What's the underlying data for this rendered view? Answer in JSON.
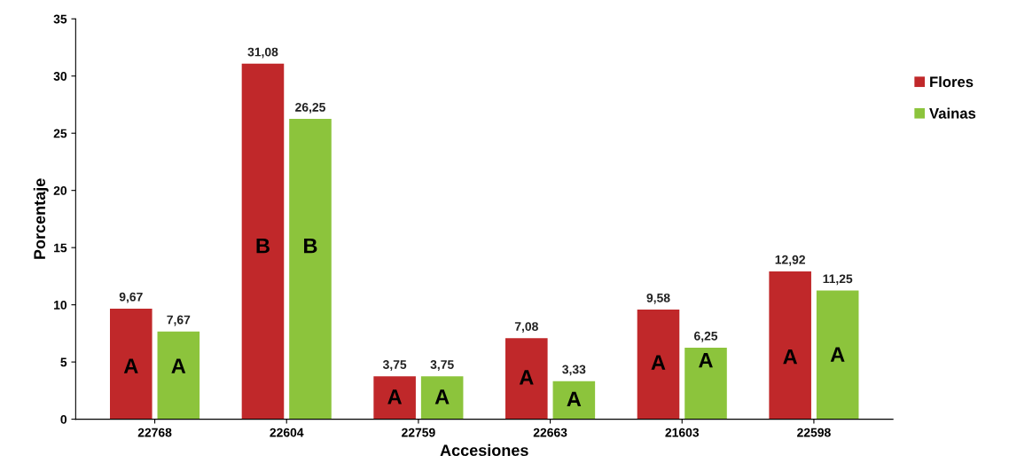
{
  "chart_data": {
    "type": "bar",
    "xlabel": "Accesiones",
    "ylabel": "Porcentaje",
    "categories": [
      "22768",
      "22604",
      "22759",
      "22663",
      "21603",
      "22598"
    ],
    "series": [
      {
        "name": "Flores",
        "color": "#c0282a",
        "values": [
          9.67,
          31.08,
          3.75,
          7.08,
          9.58,
          12.92
        ],
        "value_labels": [
          "9,67",
          "31,08",
          "3,75",
          "7,08",
          "9,58",
          "12,92"
        ]
      },
      {
        "name": "Vainas",
        "color": "#8cc43c",
        "values": [
          7.67,
          26.25,
          3.75,
          3.33,
          6.25,
          11.25
        ],
        "value_labels": [
          "7,67",
          "26,25",
          "3,75",
          "3,33",
          "6,25",
          "11,25"
        ]
      }
    ],
    "ylim": [
      0,
      35
    ],
    "yticks": [
      0,
      5,
      10,
      15,
      20,
      25,
      30,
      35
    ],
    "grid": false,
    "legend": "right",
    "annotations": [
      {
        "text": "A",
        "x": "22768",
        "y": 4.5
      },
      {
        "text": "A",
        "x": "22768",
        "y": 4.5
      },
      {
        "text": "B",
        "x": "22604",
        "y": 15
      },
      {
        "text": "B",
        "x": "22604",
        "y": 15
      },
      {
        "text": "A",
        "x": "22759",
        "y": 1.8
      },
      {
        "text": "A",
        "x": "22759",
        "y": 1.8
      },
      {
        "text": "A",
        "x": "22663",
        "y": 3.5
      },
      {
        "text": "A",
        "x": "22663",
        "y": 1.6
      },
      {
        "text": "A",
        "x": "21603",
        "y": 4.8
      },
      {
        "text": "A",
        "x": "21603",
        "y": 5
      },
      {
        "text": "A",
        "x": "22598",
        "y": 5.3
      },
      {
        "text": "A",
        "x": "22598",
        "y": 5.5
      }
    ]
  }
}
